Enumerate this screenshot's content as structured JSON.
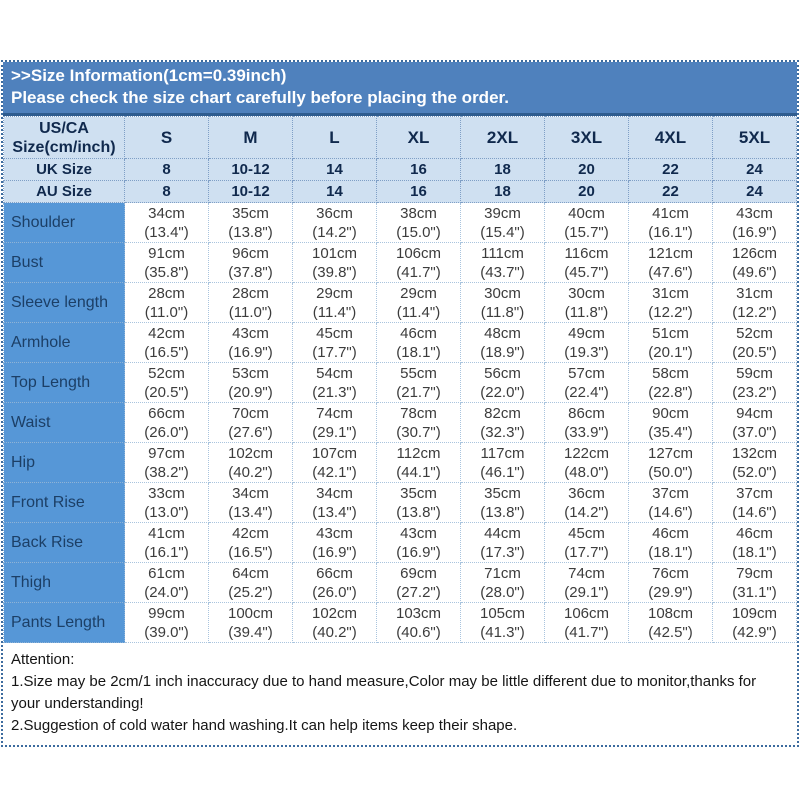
{
  "banner": {
    "title": ">>Size Information(1cm=0.39inch)",
    "subtitle": "Please check the size chart carefully before placing the order."
  },
  "table": {
    "corner_lines": [
      "US/CA",
      "Size(cm/inch)"
    ],
    "size_labels": [
      "S",
      "M",
      "L",
      "XL",
      "2XL",
      "3XL",
      "4XL",
      "5XL"
    ],
    "uk_row": {
      "label": "UK Size",
      "values": [
        "8",
        "10-12",
        "14",
        "16",
        "18",
        "20",
        "22",
        "24"
      ]
    },
    "au_row": {
      "label": "AU Size",
      "values": [
        "8",
        "10-12",
        "14",
        "16",
        "18",
        "20",
        "22",
        "24"
      ]
    },
    "measurements": [
      {
        "label": "Shoulder",
        "cm": [
          "34cm",
          "35cm",
          "36cm",
          "38cm",
          "39cm",
          "40cm",
          "41cm",
          "43cm"
        ],
        "inch": [
          "(13.4\")",
          "(13.8\")",
          "(14.2\")",
          "(15.0\")",
          "(15.4\")",
          "(15.7\")",
          "(16.1\")",
          "(16.9\")"
        ]
      },
      {
        "label": "Bust",
        "cm": [
          "91cm",
          "96cm",
          "101cm",
          "106cm",
          "111cm",
          "116cm",
          "121cm",
          "126cm"
        ],
        "inch": [
          "(35.8\")",
          "(37.8\")",
          "(39.8\")",
          "(41.7\")",
          "(43.7\")",
          "(45.7\")",
          "(47.6\")",
          "(49.6\")"
        ]
      },
      {
        "label": "Sleeve length",
        "cm": [
          "28cm",
          "28cm",
          "29cm",
          "29cm",
          "30cm",
          "30cm",
          "31cm",
          "31cm"
        ],
        "inch": [
          "(11.0\")",
          "(11.0\")",
          "(11.4\")",
          "(11.4\")",
          "(11.8\")",
          "(11.8\")",
          "(12.2\")",
          "(12.2\")"
        ]
      },
      {
        "label": "Armhole",
        "cm": [
          "42cm",
          "43cm",
          "45cm",
          "46cm",
          "48cm",
          "49cm",
          "51cm",
          "52cm"
        ],
        "inch": [
          "(16.5\")",
          "(16.9\")",
          "(17.7\")",
          "(18.1\")",
          "(18.9\")",
          "(19.3\")",
          "(20.1\")",
          "(20.5\")"
        ]
      },
      {
        "label": "Top Length",
        "cm": [
          "52cm",
          "53cm",
          "54cm",
          "55cm",
          "56cm",
          "57cm",
          "58cm",
          "59cm"
        ],
        "inch": [
          "(20.5\")",
          "(20.9\")",
          "(21.3\")",
          "(21.7\")",
          "(22.0\")",
          "(22.4\")",
          "(22.8\")",
          "(23.2\")"
        ]
      },
      {
        "label": "Waist",
        "cm": [
          "66cm",
          "70cm",
          "74cm",
          "78cm",
          "82cm",
          "86cm",
          "90cm",
          "94cm"
        ],
        "inch": [
          "(26.0\")",
          "(27.6\")",
          "(29.1\")",
          "(30.7\")",
          "(32.3\")",
          "(33.9\")",
          "(35.4\")",
          "(37.0\")"
        ]
      },
      {
        "label": "Hip",
        "cm": [
          "97cm",
          "102cm",
          "107cm",
          "112cm",
          "117cm",
          "122cm",
          "127cm",
          "132cm"
        ],
        "inch": [
          "(38.2\")",
          "(40.2\")",
          "(42.1\")",
          "(44.1\")",
          "(46.1\")",
          "(48.0\")",
          "(50.0\")",
          "(52.0\")"
        ]
      },
      {
        "label": "Front Rise",
        "cm": [
          "33cm",
          "34cm",
          "34cm",
          "35cm",
          "35cm",
          "36cm",
          "37cm",
          "37cm"
        ],
        "inch": [
          "(13.0\")",
          "(13.4\")",
          "(13.4\")",
          "(13.8\")",
          "(13.8\")",
          "(14.2\")",
          "(14.6\")",
          "(14.6\")"
        ]
      },
      {
        "label": "Back Rise",
        "cm": [
          "41cm",
          "42cm",
          "43cm",
          "43cm",
          "44cm",
          "45cm",
          "46cm",
          "46cm"
        ],
        "inch": [
          "(16.1\")",
          "(16.5\")",
          "(16.9\")",
          "(16.9\")",
          "(17.3\")",
          "(17.7\")",
          "(18.1\")",
          "(18.1\")"
        ]
      },
      {
        "label": "Thigh",
        "cm": [
          "61cm",
          "64cm",
          "66cm",
          "69cm",
          "71cm",
          "74cm",
          "76cm",
          "79cm"
        ],
        "inch": [
          "(24.0\")",
          "(25.2\")",
          "(26.0\")",
          "(27.2\")",
          "(28.0\")",
          "(29.1\")",
          "(29.9\")",
          "(31.1\")"
        ]
      },
      {
        "label": "Pants Length",
        "cm": [
          "99cm",
          "100cm",
          "102cm",
          "103cm",
          "105cm",
          "106cm",
          "108cm",
          "109cm"
        ],
        "inch": [
          "(39.0\")",
          "(39.4\")",
          "(40.2\")",
          "(40.6\")",
          "(41.3\")",
          "(41.7\")",
          "(42.5\")",
          "(42.9\")"
        ]
      }
    ]
  },
  "attention": {
    "heading": "Attention:",
    "notes": [
      "1.Size may be 2cm/1 inch inaccuracy due to hand measure,Color may be little different due to monitor,thanks for your understanding!",
      "2.Suggestion of cold water hand washing.It can help items keep their shape."
    ]
  },
  "colors": {
    "banner_blue": "#4f81bd",
    "header_light_blue": "#cfe0f1",
    "label_column_blue": "#5697d7",
    "header_text_navy": "#10294d",
    "data_text_gray": "#3c3c3c",
    "dotted_border_navy": "#3c6b9e",
    "grid_dotted_blue": "#a9c4de"
  }
}
